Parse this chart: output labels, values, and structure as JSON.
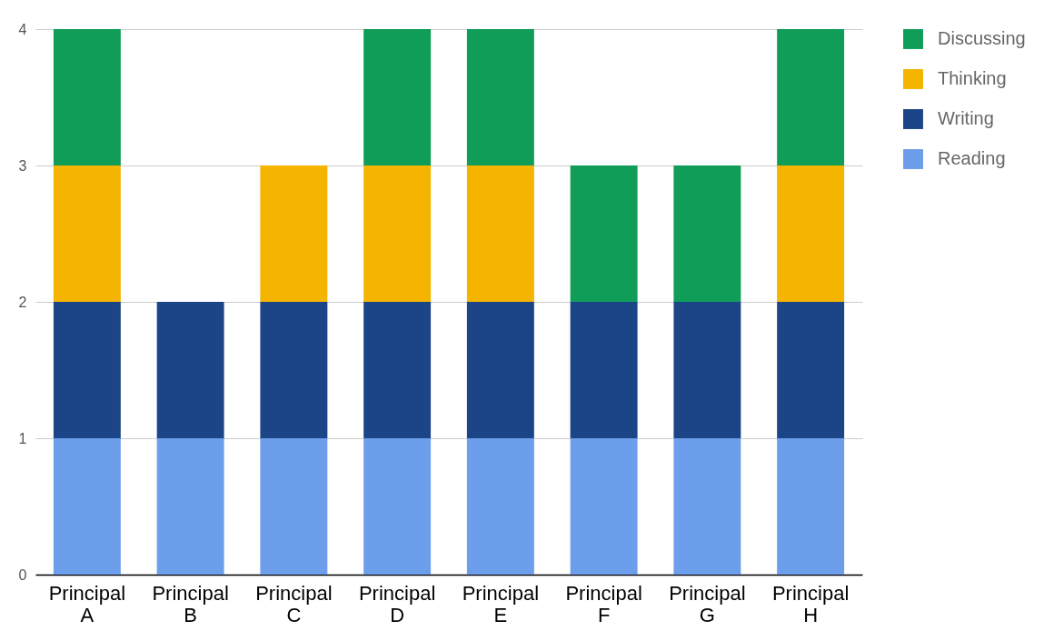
{
  "chart_data": {
    "type": "bar",
    "stacked": true,
    "categories": [
      "Principal A",
      "Principal B",
      "Principal C",
      "Principal D",
      "Principal E",
      "Principal F",
      "Principal G",
      "Principal H"
    ],
    "series": [
      {
        "name": "Reading",
        "color": "#6d9eeb",
        "values": [
          1,
          1,
          1,
          1,
          1,
          1,
          1,
          1
        ]
      },
      {
        "name": "Writing",
        "color": "#1c4587",
        "values": [
          1,
          1,
          1,
          1,
          1,
          1,
          1,
          1
        ]
      },
      {
        "name": "Thinking",
        "color": "#f4b400",
        "values": [
          1,
          0,
          1,
          1,
          1,
          0,
          0,
          1
        ]
      },
      {
        "name": "Discussing",
        "color": "#0f9d58",
        "values": [
          1,
          0,
          0,
          1,
          1,
          1,
          1,
          1
        ]
      }
    ],
    "ylim": [
      0,
      4
    ],
    "yticks": [
      0,
      1,
      2,
      3,
      4
    ],
    "grid": "y",
    "legend": "top right"
  }
}
